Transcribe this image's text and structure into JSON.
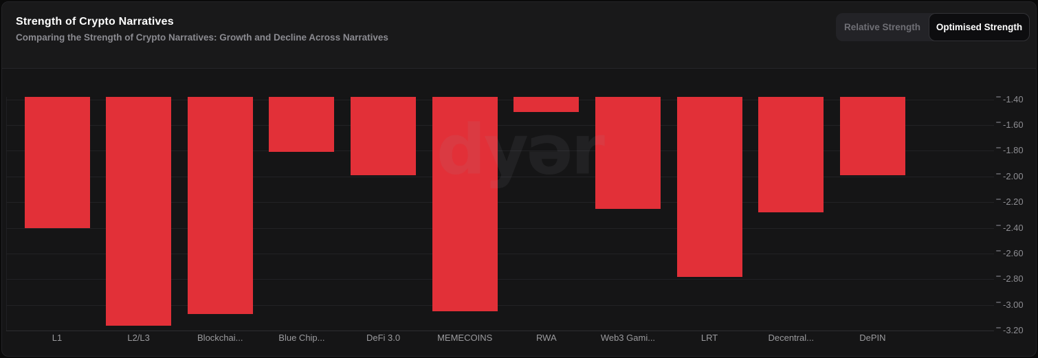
{
  "header": {
    "title": "Strength of Crypto Narratives",
    "subtitle": "Comparing the Strength of Crypto Narratives: Growth and Decline Across Narratives",
    "toggle": {
      "options": [
        {
          "label": "Relative Strength",
          "active": false
        },
        {
          "label": "Optimised Strength",
          "active": true
        }
      ]
    }
  },
  "watermark": {
    "text": "dyər"
  },
  "chart_data": {
    "type": "bar",
    "title": "Strength of Crypto Narratives",
    "subtitle": "Comparing the Strength of Crypto Narratives: Growth and Decline Across Narratives",
    "categories": [
      "L1",
      "L2/L3",
      "Blockchai...",
      "Blue Chip...",
      "DeFi 3.0",
      "MEMECOINS",
      "RWA",
      "Web3 Gami...",
      "LRT",
      "Decentral...",
      "DePIN"
    ],
    "values": [
      -2.4,
      -3.16,
      -3.07,
      -1.81,
      -1.99,
      -3.05,
      -1.5,
      -2.25,
      -2.78,
      -2.28,
      -1.99
    ],
    "bar_color": "#e23038",
    "xlabel": "",
    "ylabel": "",
    "y_axis": {
      "side": "right",
      "ticks": [
        -1.4,
        -1.6,
        -1.8,
        -2.0,
        -2.2,
        -2.4,
        -2.6,
        -2.8,
        -3.0,
        -3.2
      ],
      "range": [
        -3.205,
        -1.38
      ],
      "tick_decimals": 2
    },
    "grid": true,
    "legend": false,
    "background": "#151516"
  }
}
